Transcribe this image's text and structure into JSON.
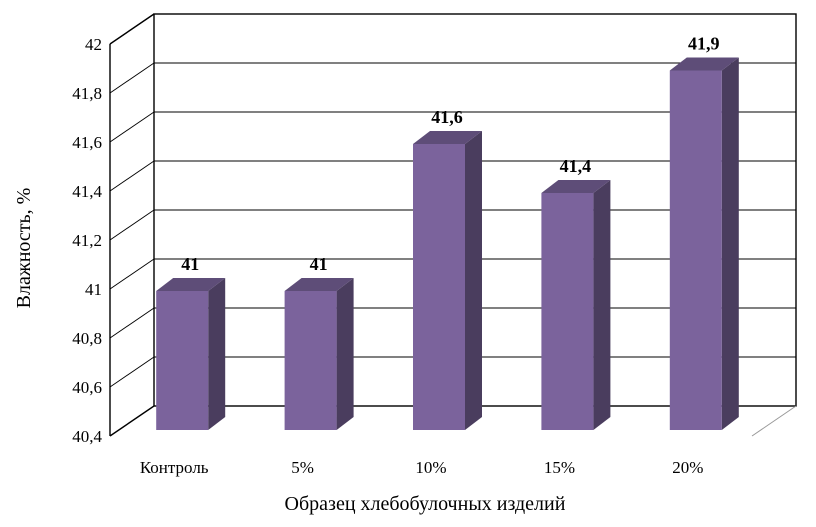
{
  "chart_data": {
    "type": "bar",
    "categories": [
      "Контроль",
      "5%",
      "10%",
      "15%",
      "20%"
    ],
    "series": [
      {
        "values": [
          41,
          41,
          41.6,
          41.4,
          41.9
        ],
        "data_labels": [
          "41",
          "41",
          "41,6",
          "41,4",
          "41,9"
        ]
      }
    ],
    "xlabel": "Образец хлебобулочных изделий",
    "ylabel": "Влажность, %",
    "ylim": [
      40.4,
      42
    ],
    "yticks": [
      40.4,
      40.6,
      40.8,
      41,
      41.2,
      41.4,
      41.6,
      41.8,
      42
    ],
    "ytick_labels": [
      "40,4",
      "40,6",
      "40,8",
      "41",
      "41,2",
      "41,4",
      "41,6",
      "41,8",
      "42"
    ],
    "grid": true,
    "style": "3d",
    "colors": {
      "bar_front": "#7b639c",
      "bar_side": "#4a3d5e",
      "bar_top": "#5e4d78",
      "grid": "#000000"
    }
  }
}
